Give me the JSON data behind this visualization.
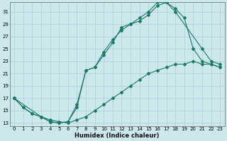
{
  "xlabel": "Humidex (Indice chaleur)",
  "bg_color": "#cde8ec",
  "grid_color": "#aacdd4",
  "line_color": "#1a7a6a",
  "xlim": [
    -0.5,
    23.5
  ],
  "ylim": [
    12.5,
    32.5
  ],
  "xticks": [
    0,
    1,
    2,
    3,
    4,
    5,
    6,
    7,
    8,
    9,
    10,
    11,
    12,
    13,
    14,
    15,
    16,
    17,
    18,
    19,
    20,
    21,
    22,
    23
  ],
  "yticks": [
    13,
    15,
    17,
    19,
    21,
    23,
    25,
    27,
    29,
    31
  ],
  "curve1_x": [
    0,
    1,
    2,
    3,
    4,
    5,
    6,
    7,
    8,
    9,
    10,
    11,
    12,
    13,
    14,
    15,
    16,
    17,
    18,
    21,
    22,
    23
  ],
  "curve1_y": [
    17.0,
    15.5,
    14.5,
    14.0,
    13.2,
    13.0,
    13.2,
    15.5,
    21.5,
    22.0,
    24.0,
    26.0,
    28.5,
    29.0,
    30.0,
    31.0,
    32.5,
    32.5,
    31.0,
    25.0,
    23.0,
    22.5
  ],
  "curve2_x": [
    0,
    1,
    2,
    3,
    4,
    5,
    6,
    7,
    8,
    9,
    10,
    11,
    12,
    13,
    14,
    15,
    16,
    17,
    18,
    19,
    20,
    21,
    22,
    23
  ],
  "curve2_y": [
    17.0,
    15.5,
    14.5,
    14.0,
    13.2,
    13.0,
    13.2,
    16.0,
    21.5,
    22.0,
    24.5,
    26.5,
    28.0,
    29.0,
    29.5,
    30.5,
    32.0,
    32.5,
    31.5,
    30.0,
    25.0,
    23.0,
    22.5,
    22.0
  ],
  "curve3_x": [
    0,
    3,
    4,
    5,
    6,
    7,
    8,
    9,
    10,
    11,
    12,
    13,
    14,
    15,
    16,
    17,
    18,
    19,
    20,
    21,
    22,
    23
  ],
  "curve3_y": [
    17.0,
    14.0,
    13.5,
    13.2,
    13.0,
    13.5,
    14.0,
    15.0,
    16.0,
    17.0,
    18.0,
    19.0,
    20.0,
    21.0,
    21.5,
    22.0,
    22.5,
    22.5,
    23.0,
    22.5,
    22.5,
    22.0
  ]
}
